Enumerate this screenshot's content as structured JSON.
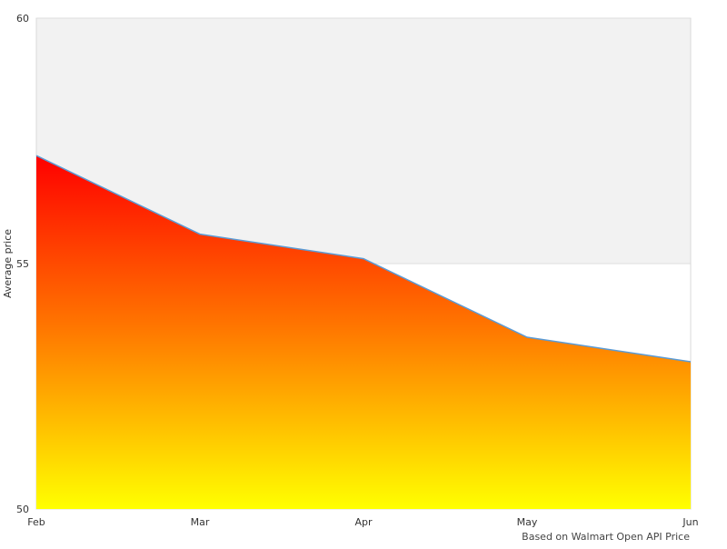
{
  "chart_data": {
    "type": "area",
    "categories": [
      "Feb",
      "Mar",
      "Apr",
      "May",
      "Jun"
    ],
    "values": [
      57.2,
      55.6,
      55.1,
      53.5,
      53.0
    ],
    "ylabel": "Average price",
    "ylim": [
      50,
      60
    ],
    "yticks": [
      50,
      55,
      60
    ],
    "grid": true,
    "colors": {
      "plot_top_band": "#f2f2f2",
      "plot_bottom_band": "#ffffff",
      "line": "#5b9bd5",
      "fill_top": "#ff0000",
      "fill_mid": "#ff7a00",
      "fill_bottom": "#ffff00"
    }
  },
  "footer": {
    "note": "Based on Walmart Open API Price"
  }
}
